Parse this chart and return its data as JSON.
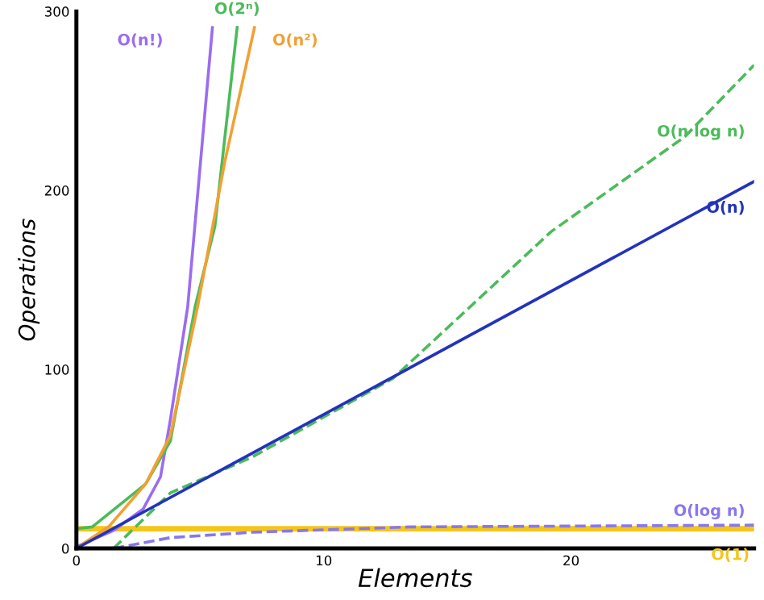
{
  "chart_data": {
    "type": "line",
    "xlabel": "Elements",
    "ylabel": "Operations",
    "xlim": [
      0,
      27.4
    ],
    "xticks": [
      0,
      10,
      20
    ],
    "ylim": [
      0,
      300
    ],
    "yticks": [
      0,
      100,
      200,
      300
    ],
    "grid": false,
    "legend": false,
    "series": [
      {
        "name": "O(n!)",
        "color": "#9b6cf0",
        "line_style": "solid",
        "x": [
          0,
          1.5,
          2.7,
          3.4,
          3.8,
          4.5,
          5.5
        ],
        "values": [
          1,
          10,
          22,
          40,
          72,
          135,
          291
        ]
      },
      {
        "name": "O(2ⁿ)",
        "color": "#4cbb5a",
        "line_style": "solid",
        "x": [
          0,
          0.64,
          2.8,
          3.8,
          4.8,
          5.6,
          6.5
        ],
        "values": [
          11,
          12,
          36,
          60,
          135,
          180,
          291
        ]
      },
      {
        "name": "O(n²)",
        "color": "#f2a033",
        "line_style": "solid",
        "x": [
          0.2,
          1.3,
          2.8,
          3.8,
          4.9,
          6,
          7.2
        ],
        "values": [
          2,
          12,
          36,
          63,
          135,
          216,
          291
        ]
      },
      {
        "name": "O(n log n)",
        "color": "#4cbb5a",
        "line_style": "dashed",
        "x": [
          1.5,
          3.8,
          7.1,
          12.8,
          19.2,
          24.6,
          27.4
        ],
        "values": [
          0,
          31,
          51,
          95,
          177,
          230,
          270
        ]
      },
      {
        "name": "O(n)",
        "color": "#2233bb",
        "line_style": "solid",
        "x": [
          0,
          27.4
        ],
        "values": [
          0,
          205
        ]
      },
      {
        "name": "O(log n)",
        "color": "#8877ee",
        "line_style": "dashed",
        "x": [
          1.5,
          3.8,
          7.1,
          13.5,
          27.4
        ],
        "values": [
          0,
          6,
          9,
          12,
          13
        ]
      },
      {
        "name": "O(1)",
        "color": "#f5c518",
        "line_style": "solid",
        "x": [
          0,
          27.4
        ],
        "values": [
          11,
          11
        ]
      }
    ]
  }
}
